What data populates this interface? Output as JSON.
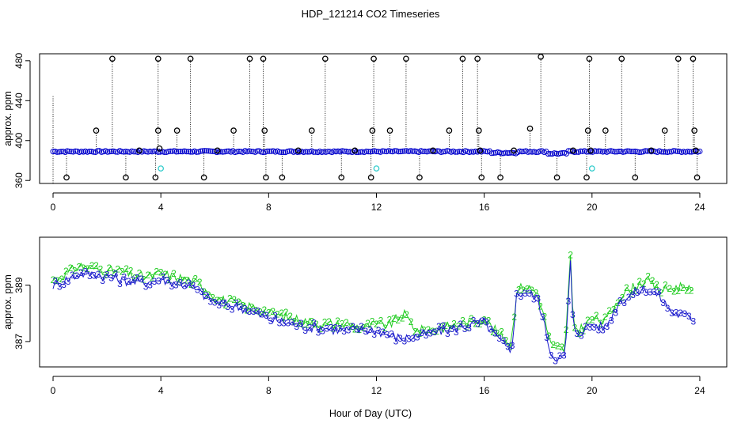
{
  "title": "HDP_121214  CO2 Timeseries",
  "xlabel": "Hour of Day (UTC)",
  "chart_data": [
    {
      "type": "scatter",
      "name": "raw-co2",
      "title": "HDP_121214  CO2 Timeseries",
      "xlabel": "",
      "ylabel": "approx. ppm",
      "xlim": [
        -0.5,
        25
      ],
      "ylim": [
        357,
        487
      ],
      "xticks": [
        0,
        4,
        8,
        12,
        16,
        20,
        24
      ],
      "xtick_labels": [
        "0",
        "4",
        "8",
        "12",
        "16",
        "20",
        "24"
      ],
      "yticks": [
        360,
        400,
        440,
        480
      ],
      "ytick_labels": [
        "360",
        "400",
        "440",
        "480"
      ],
      "baseline": 389,
      "series_color": "#0000cc",
      "spike_color": "#000000",
      "flag_color": "#33cccc",
      "spikes": [
        {
          "x": 0.5,
          "y": 363
        },
        {
          "x": 1.6,
          "y": 410
        },
        {
          "x": 2.2,
          "y": 482
        },
        {
          "x": 2.7,
          "y": 363
        },
        {
          "x": 3.2,
          "y": 390
        },
        {
          "x": 3.8,
          "y": 363
        },
        {
          "x": 3.9,
          "y": 410
        },
        {
          "x": 3.9,
          "y": 482
        },
        {
          "x": 3.95,
          "y": 392
        },
        {
          "x": 4.6,
          "y": 410
        },
        {
          "x": 5.1,
          "y": 482
        },
        {
          "x": 5.6,
          "y": 363
        },
        {
          "x": 6.1,
          "y": 390
        },
        {
          "x": 6.7,
          "y": 410
        },
        {
          "x": 7.3,
          "y": 482
        },
        {
          "x": 7.8,
          "y": 482
        },
        {
          "x": 7.85,
          "y": 410
        },
        {
          "x": 7.9,
          "y": 363
        },
        {
          "x": 8.5,
          "y": 363
        },
        {
          "x": 9.1,
          "y": 390
        },
        {
          "x": 9.6,
          "y": 410
        },
        {
          "x": 10.1,
          "y": 482
        },
        {
          "x": 10.7,
          "y": 363
        },
        {
          "x": 11.2,
          "y": 390
        },
        {
          "x": 11.8,
          "y": 363
        },
        {
          "x": 11.85,
          "y": 410
        },
        {
          "x": 11.9,
          "y": 482
        },
        {
          "x": 12.5,
          "y": 410
        },
        {
          "x": 13.1,
          "y": 482
        },
        {
          "x": 13.6,
          "y": 363
        },
        {
          "x": 14.1,
          "y": 390
        },
        {
          "x": 14.7,
          "y": 410
        },
        {
          "x": 15.2,
          "y": 482
        },
        {
          "x": 15.75,
          "y": 482
        },
        {
          "x": 15.8,
          "y": 410
        },
        {
          "x": 15.85,
          "y": 390
        },
        {
          "x": 15.9,
          "y": 363
        },
        {
          "x": 16.6,
          "y": 363
        },
        {
          "x": 17.1,
          "y": 390
        },
        {
          "x": 17.7,
          "y": 412
        },
        {
          "x": 18.1,
          "y": 484
        },
        {
          "x": 18.7,
          "y": 363
        },
        {
          "x": 19.3,
          "y": 390
        },
        {
          "x": 19.8,
          "y": 363
        },
        {
          "x": 19.85,
          "y": 410
        },
        {
          "x": 19.9,
          "y": 482
        },
        {
          "x": 19.95,
          "y": 390
        },
        {
          "x": 20.5,
          "y": 410
        },
        {
          "x": 21.1,
          "y": 482
        },
        {
          "x": 21.6,
          "y": 363
        },
        {
          "x": 22.2,
          "y": 390
        },
        {
          "x": 22.7,
          "y": 410
        },
        {
          "x": 23.2,
          "y": 482
        },
        {
          "x": 23.75,
          "y": 482
        },
        {
          "x": 23.8,
          "y": 410
        },
        {
          "x": 23.85,
          "y": 390
        },
        {
          "x": 23.9,
          "y": 363
        }
      ],
      "flags": [
        {
          "x": 4.0,
          "y": 372
        },
        {
          "x": 12.0,
          "y": 372
        },
        {
          "x": 20.0,
          "y": 372
        }
      ],
      "spike_lines": [
        {
          "x": 0.0,
          "y": 445
        }
      ]
    },
    {
      "type": "line",
      "name": "smoothed-co2",
      "title": "",
      "xlabel": "Hour of Day (UTC)",
      "ylabel": "approx. ppm",
      "xlim": [
        -0.5,
        25
      ],
      "ylim": [
        386.1,
        390.7
      ],
      "xticks": [
        0,
        4,
        8,
        12,
        16,
        20,
        24
      ],
      "xtick_labels": [
        "0",
        "4",
        "8",
        "12",
        "16",
        "20",
        "24"
      ],
      "yticks": [
        387,
        389
      ],
      "ytick_labels": [
        "387",
        "389"
      ],
      "series": [
        {
          "name": "2",
          "marker": "2",
          "color": "#22cc22",
          "x": [
            0,
            0.5,
            1,
            1.5,
            2,
            2.5,
            3,
            3.5,
            4,
            4.5,
            5,
            5.5,
            6,
            6.5,
            7,
            7.5,
            8,
            8.5,
            9,
            9.5,
            10,
            10.5,
            11,
            11.5,
            12,
            12.5,
            13,
            13.5,
            14,
            14.5,
            15,
            15.5,
            16,
            16.5,
            17,
            17.2,
            17.5,
            18,
            18.5,
            19,
            19.2,
            19.3,
            19.5,
            20,
            20.5,
            21,
            21.5,
            22,
            22.5,
            23,
            23.5,
            23.8
          ],
          "values": [
            389.2,
            389.4,
            389.7,
            389.6,
            389.5,
            389.5,
            389.3,
            389.3,
            389.4,
            389.3,
            389.2,
            389.0,
            388.6,
            388.4,
            388.3,
            388.2,
            388.0,
            387.9,
            387.8,
            387.7,
            387.6,
            387.6,
            387.6,
            387.5,
            387.6,
            387.6,
            388.0,
            387.4,
            387.4,
            387.5,
            387.6,
            387.7,
            387.8,
            387.3,
            386.9,
            388.8,
            389.0,
            388.7,
            386.8,
            386.7,
            390.0,
            387.6,
            387.4,
            387.8,
            387.7,
            388.6,
            388.9,
            389.2,
            388.8,
            388.9,
            389.0,
            388.6
          ]
        },
        {
          "name": "3",
          "marker": "3",
          "color": "#1a1acc",
          "x": [
            0,
            0.5,
            1,
            1.5,
            2,
            2.5,
            3,
            3.5,
            4,
            4.5,
            5,
            5.5,
            6,
            6.5,
            7,
            7.5,
            8,
            8.5,
            9,
            9.5,
            10,
            10.5,
            11,
            11.5,
            12,
            12.5,
            13,
            13.5,
            14,
            14.5,
            15,
            15.5,
            16,
            16.5,
            17,
            17.2,
            17.5,
            18,
            18.5,
            19,
            19.2,
            19.3,
            19.5,
            20,
            20.5,
            21,
            21.5,
            22,
            22.5,
            23,
            23.5,
            23.8
          ],
          "values": [
            389.0,
            389.2,
            389.4,
            389.4,
            389.3,
            389.2,
            389.1,
            389.1,
            389.2,
            389.1,
            389.0,
            388.7,
            388.4,
            388.3,
            388.2,
            388.0,
            387.8,
            387.7,
            387.6,
            387.5,
            387.5,
            387.4,
            387.4,
            387.4,
            387.4,
            387.2,
            387.1,
            387.2,
            387.3,
            387.4,
            387.5,
            387.6,
            387.7,
            387.1,
            386.6,
            388.6,
            388.8,
            388.5,
            386.5,
            386.4,
            389.8,
            387.4,
            387.3,
            387.6,
            387.5,
            388.4,
            388.7,
            388.9,
            388.6,
            388.0,
            387.9,
            387.8
          ]
        }
      ]
    }
  ]
}
